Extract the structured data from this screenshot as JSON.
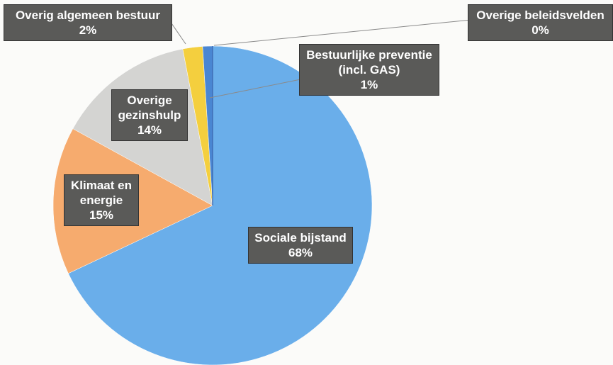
{
  "chart_data": {
    "type": "pie",
    "categories": [
      "Sociale bijstand",
      "Klimaat en energie",
      "Overige gezinshulp",
      "Overig algemeen bestuur",
      "Bestuurlijke preventie (incl. GAS)",
      "Overige beleidsvelden"
    ],
    "values": [
      68,
      15,
      14,
      2,
      1,
      0
    ],
    "value_labels": [
      "68%",
      "15%",
      "14%",
      "2%",
      "1%",
      "0%"
    ],
    "colors": [
      "#6aaeea",
      "#f6ab6e",
      "#d4d4d2",
      "#f4cf3e",
      "#4a86d2",
      "#3f6fb8"
    ]
  }
}
